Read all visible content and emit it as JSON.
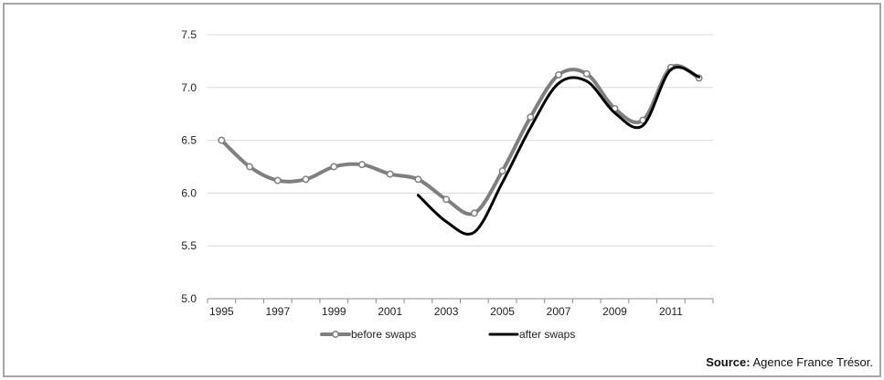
{
  "chart_data": {
    "type": "line",
    "title": "",
    "xlabel": "",
    "ylabel": "",
    "xlim": [
      1995,
      2012
    ],
    "ylim": [
      5.0,
      7.5
    ],
    "x_ticks": [
      "1995",
      "1997",
      "1999",
      "2001",
      "2003",
      "2005",
      "2007",
      "2009",
      "2011"
    ],
    "y_ticks": [
      "5.0",
      "5.5",
      "6.0",
      "6.5",
      "7.0",
      "7.5"
    ],
    "grid": "horizontal",
    "legend_position": "bottom",
    "series": [
      {
        "name": "before swaps",
        "color": "#7f7f7f",
        "marker": "circle",
        "x": [
          1995,
          1996,
          1997,
          1998,
          1999,
          2000,
          2001,
          2002,
          2003,
          2004,
          2005,
          2006,
          2007,
          2008,
          2009,
          2010,
          2011,
          2012
        ],
        "values": [
          6.5,
          6.25,
          6.12,
          6.13,
          6.25,
          6.27,
          6.18,
          6.13,
          5.94,
          5.81,
          6.21,
          6.72,
          7.12,
          7.13,
          6.8,
          6.69,
          7.19,
          7.09
        ]
      },
      {
        "name": "after swaps",
        "color": "#000000",
        "marker": "none",
        "x": [
          2002,
          2003,
          2004,
          2005,
          2006,
          2007,
          2008,
          2009,
          2010,
          2011,
          2012
        ],
        "values": [
          5.98,
          5.73,
          5.63,
          6.1,
          6.62,
          7.04,
          7.06,
          6.76,
          6.64,
          7.17,
          7.1
        ]
      }
    ]
  },
  "source": {
    "label": "Source:",
    "text": " Agence France Trésor."
  }
}
